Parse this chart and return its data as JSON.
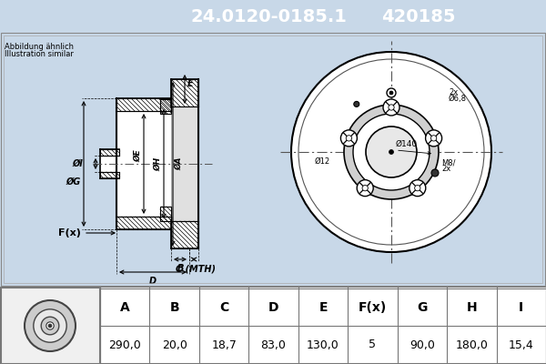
{
  "title_part1": "24.0120-0185.1",
  "title_part2": "420185",
  "header_bg": "#0000ee",
  "header_text_color": "#ffffff",
  "bg_color": "#c8d8e8",
  "diagram_bg": "#c8d8e8",
  "table_bg": "#ffffff",
  "note_text1": "Abbildung ähnlich",
  "note_text2": "Illustration similar",
  "dim_labels": [
    "A",
    "B",
    "C",
    "D",
    "E",
    "F(x)",
    "G",
    "H",
    "I"
  ],
  "dim_values": [
    "290,0",
    "20,0",
    "18,7",
    "83,0",
    "130,0",
    "5",
    "90,0",
    "180,0",
    "15,4"
  ],
  "line_color": "#000000",
  "hatch_color": "#000000",
  "center_line_color": "#555555"
}
